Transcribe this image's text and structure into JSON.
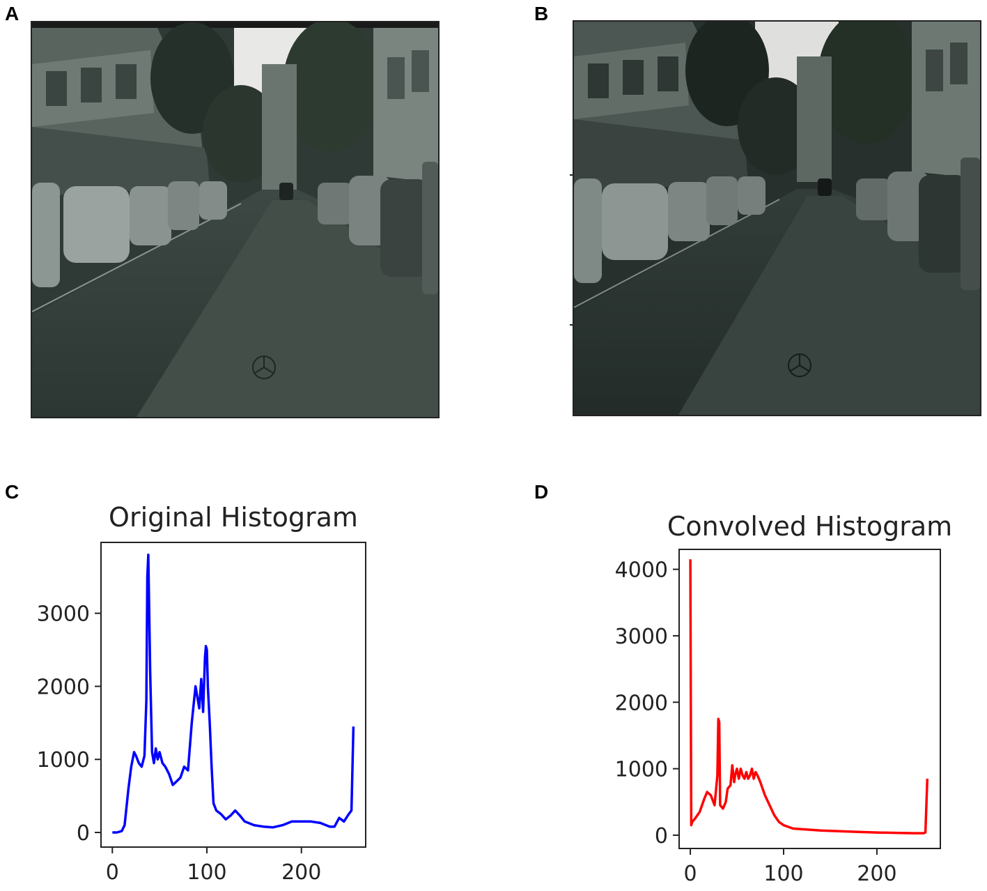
{
  "panels": {
    "a": {
      "letter": "A"
    },
    "b": {
      "letter": "B"
    },
    "c": {
      "letter": "C"
    },
    "d": {
      "letter": "D"
    }
  },
  "chart_data": [
    {
      "type": "line",
      "title": "Original Histogram",
      "xlabel": "",
      "ylabel": "",
      "xlim": [
        -12,
        268
      ],
      "ylim": [
        -200,
        3970
      ],
      "xticks": [
        0,
        100,
        200
      ],
      "yticks": [
        0,
        1000,
        2000,
        3000
      ],
      "grid": false,
      "color": "#0000ff",
      "series": [
        {
          "x": [
            0,
            5,
            10,
            13,
            17,
            20,
            23,
            25,
            28,
            31,
            34,
            36,
            37,
            38,
            40,
            42,
            44,
            46,
            48,
            50,
            53,
            56,
            60,
            64,
            68,
            72,
            76,
            80,
            84,
            88,
            90,
            92,
            94,
            96,
            98,
            99,
            100,
            101,
            103,
            105,
            107,
            110,
            115,
            120,
            125,
            130,
            135,
            140,
            150,
            160,
            170,
            180,
            190,
            200,
            210,
            220,
            230,
            235,
            240,
            245,
            250,
            253,
            255
          ],
          "y": [
            0,
            0,
            20,
            100,
            600,
            900,
            1100,
            1050,
            950,
            900,
            1050,
            1800,
            3500,
            3800,
            2200,
            1100,
            950,
            1150,
            1000,
            1100,
            950,
            900,
            800,
            650,
            700,
            750,
            900,
            850,
            1500,
            2000,
            1850,
            1700,
            2100,
            1650,
            2400,
            2550,
            2500,
            2000,
            1500,
            900,
            400,
            300,
            250,
            180,
            230,
            300,
            230,
            150,
            100,
            80,
            70,
            100,
            150,
            150,
            150,
            130,
            80,
            80,
            200,
            150,
            250,
            300,
            1450
          ]
        }
      ]
    },
    {
      "type": "line",
      "title": "Convolved Histogram",
      "xlabel": "",
      "ylabel": "",
      "xlim": [
        -12,
        268
      ],
      "ylim": [
        -200,
        4300
      ],
      "xticks": [
        0,
        100,
        200
      ],
      "yticks": [
        0,
        1000,
        2000,
        3000,
        4000
      ],
      "grid": false,
      "color": "#ff0000",
      "series": [
        {
          "x": [
            0,
            1,
            2,
            5,
            10,
            15,
            18,
            22,
            26,
            29,
            30,
            31,
            32,
            35,
            38,
            40,
            43,
            45,
            47,
            48,
            50,
            52,
            54,
            56,
            58,
            60,
            62,
            64,
            66,
            68,
            70,
            72,
            75,
            80,
            85,
            90,
            95,
            100,
            110,
            120,
            140,
            160,
            180,
            200,
            220,
            240,
            250,
            252,
            254
          ],
          "y": [
            4150,
            150,
            200,
            250,
            350,
            550,
            650,
            600,
            450,
            900,
            1750,
            1700,
            450,
            400,
            500,
            700,
            750,
            1050,
            800,
            900,
            1000,
            850,
            1000,
            900,
            850,
            950,
            850,
            900,
            1000,
            850,
            950,
            900,
            800,
            600,
            450,
            300,
            200,
            150,
            100,
            90,
            70,
            60,
            50,
            40,
            35,
            30,
            30,
            40,
            850
          ]
        }
      ]
    }
  ]
}
